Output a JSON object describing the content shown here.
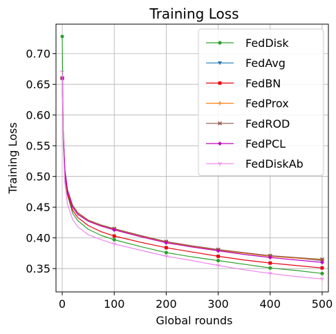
{
  "chart_data": {
    "type": "line",
    "title": "Training Loss",
    "xlabel": "Global rounds",
    "ylabel": "Training Loss",
    "xlim": [
      -12,
      512
    ],
    "ylim": [
      0.312,
      0.748
    ],
    "x_ticks": [
      0,
      100,
      200,
      300,
      400,
      500
    ],
    "x_tick_labels": [
      "0",
      "100",
      "200",
      "300",
      "400",
      "500"
    ],
    "y_ticks": [
      0.35,
      0.4,
      0.45,
      0.5,
      0.55,
      0.6,
      0.65,
      0.7
    ],
    "y_tick_labels": [
      "0.35",
      "0.40",
      "0.45",
      "0.50",
      "0.55",
      "0.60",
      "0.65",
      "0.70"
    ],
    "grid": true,
    "legend_position": "top-right",
    "marker_every": 100,
    "x": [
      0,
      2,
      5,
      10,
      20,
      30,
      50,
      75,
      100,
      150,
      200,
      250,
      300,
      350,
      400,
      450,
      500
    ],
    "series": [
      {
        "name": "FedDisk",
        "color": "#2ca02c",
        "marker": "circle",
        "values": [
          0.728,
          0.56,
          0.5,
          0.47,
          0.44,
          0.428,
          0.414,
          0.404,
          0.397,
          0.386,
          0.376,
          0.369,
          0.363,
          0.357,
          0.351,
          0.347,
          0.342
        ]
      },
      {
        "name": "FedAvg",
        "color": "#1f77b4",
        "marker": "triangle-down",
        "values": [
          0.66,
          0.57,
          0.51,
          0.478,
          0.452,
          0.44,
          0.428,
          0.42,
          0.414,
          0.403,
          0.393,
          0.386,
          0.38,
          0.375,
          0.37,
          0.367,
          0.363
        ]
      },
      {
        "name": "FedBN",
        "color": "#e8000b",
        "marker": "square",
        "values": [
          0.66,
          0.565,
          0.505,
          0.472,
          0.445,
          0.433,
          0.42,
          0.41,
          0.403,
          0.393,
          0.384,
          0.377,
          0.37,
          0.364,
          0.359,
          0.355,
          0.351
        ]
      },
      {
        "name": "FedProx",
        "color": "#ff7f0e",
        "marker": "plus",
        "values": [
          0.66,
          0.57,
          0.51,
          0.478,
          0.452,
          0.44,
          0.428,
          0.42,
          0.414,
          0.403,
          0.393,
          0.386,
          0.38,
          0.375,
          0.37,
          0.367,
          0.364
        ]
      },
      {
        "name": "FedROD",
        "color": "#8c564b",
        "marker": "x",
        "values": [
          0.66,
          0.572,
          0.512,
          0.479,
          0.453,
          0.441,
          0.429,
          0.421,
          0.415,
          0.404,
          0.394,
          0.387,
          0.381,
          0.376,
          0.371,
          0.368,
          0.365
        ]
      },
      {
        "name": "FedPCL",
        "color": "#c000c0",
        "marker": "diamond",
        "values": [
          0.66,
          0.57,
          0.51,
          0.477,
          0.45,
          0.438,
          0.427,
          0.419,
          0.413,
          0.402,
          0.392,
          0.385,
          0.379,
          0.373,
          0.368,
          0.364,
          0.36
        ]
      },
      {
        "name": "FedDiskAb",
        "color": "#ee82ee",
        "marker": "tri-down",
        "values": [
          0.67,
          0.55,
          0.49,
          0.455,
          0.43,
          0.418,
          0.405,
          0.397,
          0.39,
          0.38,
          0.37,
          0.363,
          0.355,
          0.348,
          0.342,
          0.337,
          0.333
        ]
      }
    ]
  }
}
